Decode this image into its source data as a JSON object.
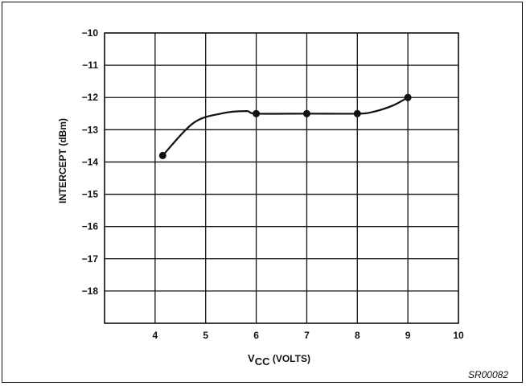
{
  "chart_data": {
    "type": "line",
    "xlabel": {
      "main": "V",
      "sub": "CC",
      "rest": " (VOLTS)"
    },
    "ylabel": "INTERCEPT (dBm)",
    "xlim": [
      3,
      10
    ],
    "ylim": [
      -19,
      -10
    ],
    "x_ticks": [
      4,
      5,
      6,
      7,
      8,
      9,
      10
    ],
    "y_ticks": [
      -10,
      -11,
      -12,
      -13,
      -14,
      -15,
      -16,
      -17,
      -18
    ],
    "x_tick_labels": [
      "4",
      "5",
      "6",
      "7",
      "8",
      "9",
      "10"
    ],
    "y_tick_labels": [
      "−10",
      "−11",
      "−12",
      "−13",
      "−14",
      "−15",
      "−16",
      "−17",
      "−18"
    ],
    "grid": true,
    "series": [
      {
        "points": [
          {
            "x": 4.15,
            "y": -13.8
          },
          {
            "x": 6.0,
            "y": -12.5
          },
          {
            "x": 7.0,
            "y": -12.5
          },
          {
            "x": 8.0,
            "y": -12.5
          },
          {
            "x": 9.0,
            "y": -12.0
          }
        ],
        "curve": [
          {
            "x": 4.15,
            "y": -13.8
          },
          {
            "x": 4.75,
            "y": -12.8
          },
          {
            "x": 5.3,
            "y": -12.5
          },
          {
            "x": 5.8,
            "y": -12.42
          },
          {
            "x": 6.0,
            "y": -12.5
          },
          {
            "x": 7.0,
            "y": -12.5
          },
          {
            "x": 8.0,
            "y": -12.5
          },
          {
            "x": 8.3,
            "y": -12.45
          },
          {
            "x": 8.7,
            "y": -12.25
          },
          {
            "x": 9.0,
            "y": -12.0
          }
        ]
      }
    ]
  },
  "figure_code": "SR00082"
}
